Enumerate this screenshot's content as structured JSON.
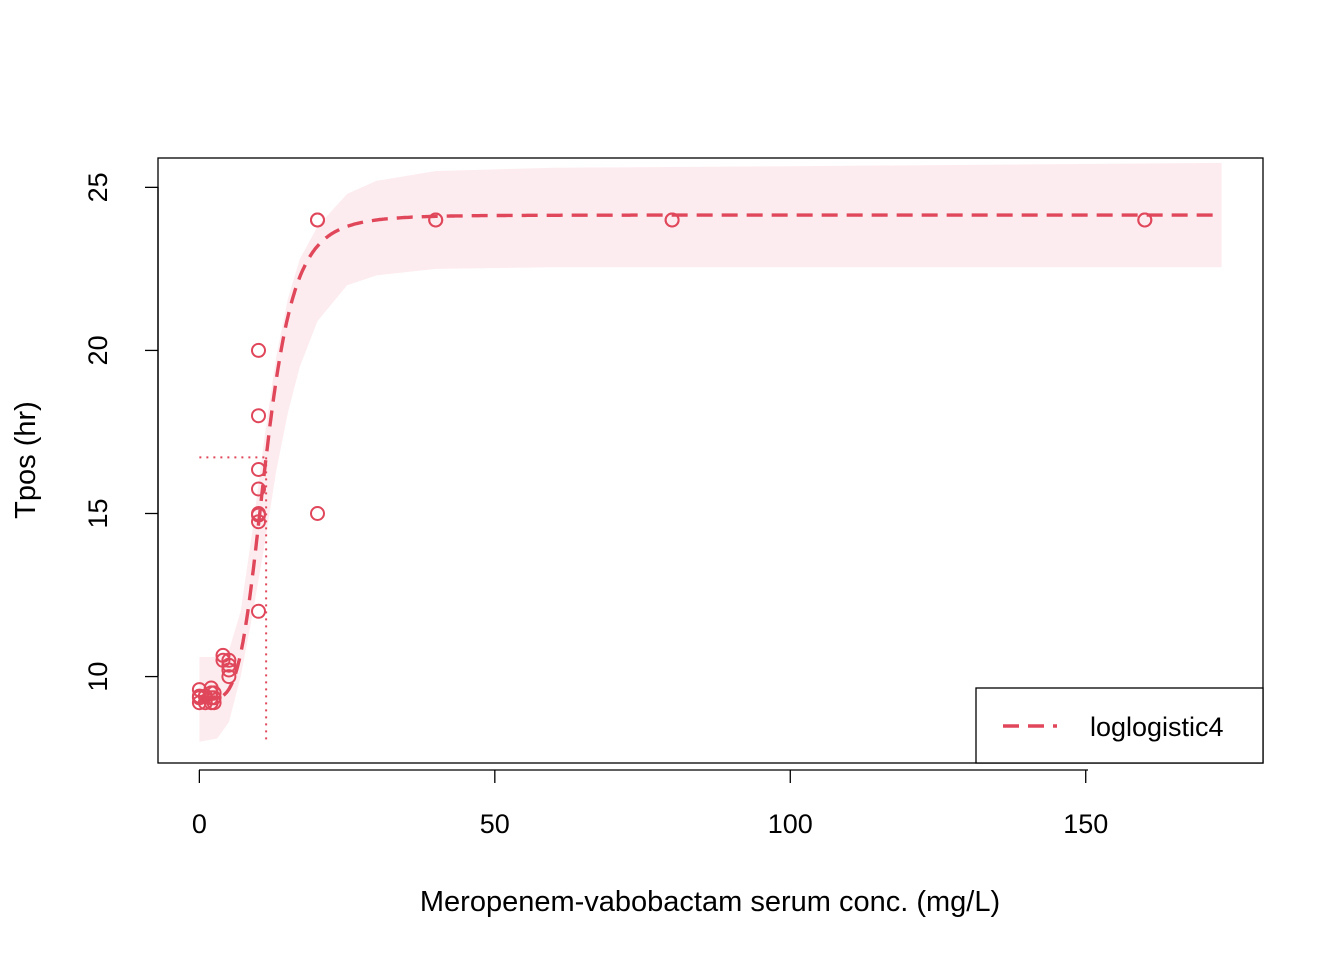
{
  "chart_data": {
    "type": "scatter",
    "xlabel": "Meropenem-vabobactam serum conc. (mg/L)",
    "ylabel": "Tpos (hr)",
    "xlim": [
      -7,
      180
    ],
    "ylim": [
      7.35,
      25.9
    ],
    "x_ticks": [
      0,
      50,
      100,
      150
    ],
    "y_ticks": [
      10,
      15,
      20,
      25
    ],
    "colors": {
      "series": "#e0475b",
      "band": "#fdecef"
    },
    "legend": {
      "position": "bottom-right",
      "entries": [
        {
          "label": "loglogistic4",
          "style": "dashed"
        }
      ]
    },
    "series": [
      {
        "kind": "points",
        "x": [
          0,
          0,
          0,
          0,
          1,
          1,
          2,
          2,
          2,
          2,
          2.5,
          2.5,
          2.5,
          4,
          4,
          5,
          5,
          5,
          5,
          10,
          10,
          10,
          10,
          10,
          10,
          10,
          10,
          20,
          20,
          20,
          40,
          40,
          80,
          80,
          160,
          160
        ],
        "y": [
          9.2,
          9.35,
          9.4,
          9.6,
          9.2,
          9.4,
          9.2,
          9.35,
          9.5,
          9.65,
          9.2,
          9.35,
          9.5,
          10.5,
          10.65,
          10.0,
          10.2,
          10.35,
          10.5,
          12.0,
          14.75,
          14.95,
          15.75,
          16.35,
          18.0,
          20.0,
          15.0,
          15.0,
          24.0,
          24.0,
          24.0,
          24.0,
          24.0,
          24.0,
          24.0,
          24.0
        ]
      },
      {
        "kind": "fit",
        "style": "dashed",
        "model": {
          "c": 9.3,
          "d": 24.15,
          "b": 4.7,
          "e": 11.3
        },
        "x_range": [
          0,
          173
        ]
      },
      {
        "kind": "band",
        "x": [
          0.01,
          3,
          5,
          7,
          9,
          11,
          13,
          15,
          17,
          20,
          25,
          30,
          40,
          60,
          100,
          173
        ],
        "lower": [
          8.0,
          8.1,
          8.6,
          10.0,
          11.9,
          14.0,
          16.3,
          18.1,
          19.5,
          20.9,
          22.0,
          22.3,
          22.5,
          22.55,
          22.55,
          22.55
        ],
        "upper": [
          10.6,
          10.6,
          10.8,
          12.0,
          14.5,
          17.3,
          19.8,
          21.6,
          22.8,
          23.8,
          24.8,
          25.2,
          25.5,
          25.6,
          25.65,
          25.75
        ]
      }
    ],
    "reference_lines": {
      "ed50_x": 11.3,
      "ed50_y": 16.72
    }
  }
}
